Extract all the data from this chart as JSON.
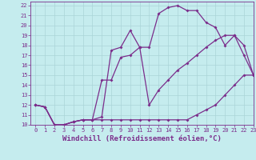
{
  "xlabel": "Windchill (Refroidissement éolien,°C)",
  "xlim": [
    -0.5,
    23
  ],
  "ylim": [
    10,
    22.4
  ],
  "xticks": [
    0,
    1,
    2,
    3,
    4,
    5,
    6,
    7,
    8,
    9,
    10,
    11,
    12,
    13,
    14,
    15,
    16,
    17,
    18,
    19,
    20,
    21,
    22,
    23
  ],
  "yticks": [
    10,
    11,
    12,
    13,
    14,
    15,
    16,
    17,
    18,
    19,
    20,
    21,
    22
  ],
  "line_color": "#7b2d8b",
  "bg_color": "#c5ecee",
  "grid_color": "#aad4d8",
  "line1_x": [
    0,
    1,
    2,
    3,
    4,
    5,
    6,
    7,
    8,
    9,
    10,
    11,
    12,
    13,
    14,
    15,
    16,
    17,
    18,
    19,
    20,
    21,
    22,
    23
  ],
  "line1_y": [
    12,
    11.8,
    10.0,
    10.0,
    10.3,
    10.5,
    10.5,
    10.5,
    10.5,
    10.5,
    10.5,
    10.5,
    10.5,
    10.5,
    10.5,
    10.5,
    10.5,
    11.0,
    11.5,
    12.0,
    13.0,
    14.0,
    15.0,
    15.0
  ],
  "line2_x": [
    0,
    1,
    2,
    3,
    4,
    5,
    6,
    7,
    8,
    9,
    10,
    11,
    12,
    13,
    14,
    15,
    16,
    17,
    18,
    19,
    20,
    21,
    22,
    23
  ],
  "line2_y": [
    12,
    11.8,
    10.0,
    10.0,
    10.3,
    10.5,
    10.5,
    10.8,
    17.5,
    17.8,
    19.5,
    17.8,
    17.8,
    21.2,
    21.8,
    22.0,
    21.5,
    21.5,
    20.3,
    19.8,
    18.0,
    19.0,
    18.0,
    15.0
  ],
  "line3_x": [
    0,
    1,
    2,
    3,
    4,
    5,
    6,
    7,
    8,
    9,
    10,
    11,
    12,
    13,
    14,
    15,
    16,
    17,
    18,
    19,
    20,
    21,
    22,
    23
  ],
  "line3_y": [
    12,
    11.8,
    10.0,
    10.0,
    10.3,
    10.5,
    10.5,
    14.5,
    14.5,
    16.8,
    17.0,
    17.8,
    12.0,
    13.5,
    14.5,
    15.5,
    16.2,
    17.0,
    17.8,
    18.5,
    19.0,
    19.0,
    17.0,
    15.0
  ],
  "marker": "D",
  "markersize": 2.0,
  "linewidth": 0.9,
  "tick_fontsize": 5.0,
  "xlabel_fontsize": 6.5
}
